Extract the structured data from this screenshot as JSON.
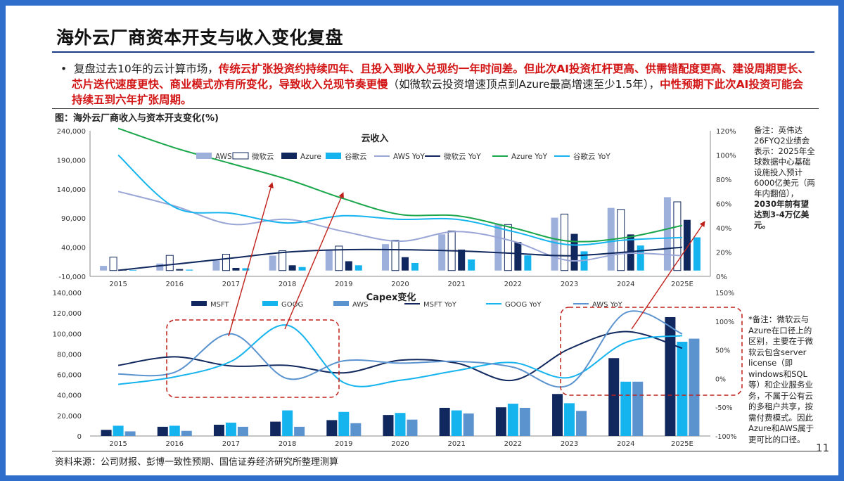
{
  "title": "海外云厂商资本开支与收入变化复盘",
  "bullet": {
    "marker": "•",
    "seg1": "复盘过去10年的云计算市场，",
    "seg2": "传统云扩张投资约持续四年、且投入到收入兑现约一年时间差。但此次AI投资杠杆更高、供需错配度更高、建设周期更长、芯片迭代速度更快、商业模式亦有所变化，导致收入兑现节奏更慢",
    "seg3": "（如微软云投资增速顶点到Azure最高增速至少1.5年），",
    "seg4": "中性预期下此次AI投资可能会持续五到六年扩张周期。"
  },
  "figure_title": "图：海外云厂商收入与资本开支变化(%)",
  "note_top": {
    "normal": "备注：英伟达26FYQ2业绩会表示：2025年全球数据中心基础设施投入预计6000亿美元（两年内翻倍），",
    "bold": "2030年前有望达到3-4万亿美元。"
  },
  "note_bottom": "*备注：微软云与Azure在口径上的区别，主要在于微软云包含server license（即windows和SQL等）和企业服务业务，不属于公有云的多租户共享，按需付费模式。因此Azure和AWS属于更可比的口径。",
  "source": "资料来源：公司财报、彭博一致性预期、国信证券经济研究所整理测算",
  "page_number": "11",
  "colors": {
    "frame": "#2f6fcb",
    "aws_bar": "#9db0dc",
    "msft_cloud_bar_fill": "#ffffff",
    "navy": "#10285e",
    "cyan": "#16b4ee",
    "aws_line": "#9aa6d6",
    "green": "#1aa64a",
    "steel": "#5b93cf",
    "red": "#c0201a"
  },
  "chart_data": [
    {
      "type": "bar",
      "title": "云收入",
      "categories": [
        "2015",
        "2016",
        "2017",
        "2018",
        "2019",
        "2020",
        "2021",
        "2022",
        "2023",
        "2024",
        "2025E"
      ],
      "y_ticks": [
        "240,000",
        "190,000",
        "140,000",
        "90,000",
        "40,000",
        "-10,000"
      ],
      "ylim": [
        -10000,
        240000
      ],
      "y2_ticks": [
        "120%",
        "100%",
        "80%",
        "60%",
        "40%",
        "20%",
        "0%"
      ],
      "y2lim": [
        0,
        120
      ],
      "bar_series": [
        {
          "name": "AWS",
          "values": [
            8000,
            12000,
            17500,
            25600,
            35000,
            45400,
            62200,
            80100,
            90800,
            107600,
            126000
          ]
        },
        {
          "name": "微软云",
          "values": [
            23000,
            26000,
            28000,
            34000,
            42000,
            52000,
            68000,
            79000,
            97000,
            105000,
            118000
          ]
        },
        {
          "name": "Azure",
          "values": [
            1500,
            2500,
            4500,
            9000,
            16000,
            23000,
            36000,
            49000,
            63000,
            62000,
            87000
          ]
        },
        {
          "name": "谷歌云",
          "values": [
            1000,
            1500,
            4000,
            6000,
            9000,
            13000,
            19000,
            26000,
            33000,
            43000,
            57000
          ]
        }
      ],
      "line_series": [
        {
          "name": "AWS YoY",
          "values": [
            70,
            58,
            43,
            47,
            37,
            29,
            37,
            29,
            13,
            19,
            17
          ]
        },
        {
          "name": "微软云 YoY",
          "values": [
            5,
            10,
            15,
            20,
            22,
            22,
            21,
            19,
            17,
            20,
            24
          ]
        },
        {
          "name": "Azure YoY",
          "values": [
            122,
            106,
            93,
            80,
            64,
            51,
            50,
            40,
            29,
            32,
            42
          ]
        },
        {
          "name": "谷歌云 YoY",
          "values": [
            100,
            57,
            52,
            44,
            50,
            47,
            47,
            37,
            26,
            30,
            32
          ]
        }
      ],
      "legend_position": "top"
    },
    {
      "type": "bar",
      "title": "Capex变化",
      "categories": [
        "2015",
        "2016",
        "2017",
        "2018",
        "2019",
        "2020",
        "2021",
        "2022",
        "2023",
        "2024",
        "2025E"
      ],
      "y_ticks": [
        "140,000",
        "120,000",
        "100,000",
        "80,000",
        "60,000",
        "40,000",
        "20,000",
        "0"
      ],
      "ylim": [
        0,
        140000
      ],
      "y2_ticks": [
        "150%",
        "100%",
        "50%",
        "0%",
        "-50%",
        "-100%"
      ],
      "y2lim": [
        -100,
        150
      ],
      "bar_series": [
        {
          "name": "MSFT",
          "values": [
            6000,
            9000,
            11000,
            14000,
            15500,
            20500,
            27500,
            28000,
            41000,
            76000,
            116000
          ]
        },
        {
          "name": "GOOG",
          "values": [
            10000,
            10000,
            13000,
            25000,
            23500,
            22500,
            25000,
            31500,
            32000,
            53000,
            92000
          ]
        },
        {
          "name": "AWS",
          "values": [
            4500,
            5000,
            9000,
            9000,
            12500,
            16000,
            22000,
            27500,
            24500,
            53000,
            95000
          ]
        }
      ],
      "line_series": [
        {
          "name": "MSFT YoY",
          "values": [
            23,
            38,
            22,
            23,
            10,
            32,
            27,
            -3,
            52,
            82,
            53
          ]
        },
        {
          "name": "GOOG YoY",
          "values": [
            -10,
            3,
            30,
            93,
            -7,
            -3,
            14,
            28,
            2,
            63,
            75
          ]
        },
        {
          "name": "AWS YoY",
          "values": [
            8,
            11,
            78,
            0,
            31,
            27,
            30,
            20,
            -11,
            115,
            78
          ]
        }
      ],
      "legend_position": "top"
    }
  ]
}
